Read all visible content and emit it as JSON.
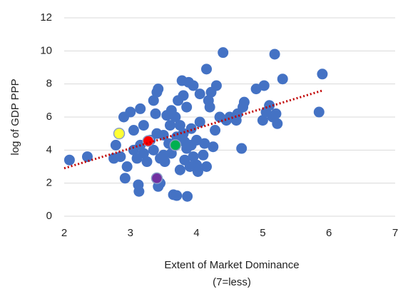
{
  "chart_data": {
    "type": "scatter",
    "xlabel": [
      "Extent of Market Dominance",
      "(7=less)"
    ],
    "ylabel": "log of GDP PPP",
    "xlim": [
      2,
      7
    ],
    "xticks": [
      2,
      3,
      4,
      5,
      6,
      7
    ],
    "ylim": [
      0,
      12
    ],
    "yticks": [
      0,
      2,
      4,
      6,
      8,
      10,
      12
    ],
    "grid": true,
    "series": [
      {
        "color": "#4472c4",
        "x": [
          2.08,
          2.35,
          2.75,
          2.78,
          2.85,
          2.9,
          2.92,
          2.95,
          3.0,
          3.05,
          3.05,
          3.1,
          3.12,
          3.13,
          3.15,
          3.15,
          3.2,
          3.2,
          3.25,
          3.3,
          3.35,
          3.35,
          3.38,
          3.4,
          3.42,
          3.4,
          3.45,
          3.45,
          3.42,
          3.5,
          3.5,
          3.52,
          3.55,
          3.58,
          3.6,
          3.62,
          3.62,
          3.65,
          3.68,
          3.7,
          3.7,
          3.72,
          3.75,
          3.75,
          3.78,
          3.8,
          3.8,
          3.82,
          3.82,
          3.85,
          3.85,
          3.86,
          3.88,
          3.9,
          3.92,
          3.92,
          3.95,
          3.95,
          4.0,
          4.0,
          4.02,
          4.05,
          4.05,
          4.1,
          4.12,
          4.15,
          4.15,
          4.18,
          4.2,
          4.22,
          4.25,
          4.28,
          4.3,
          4.35,
          4.4,
          4.45,
          4.5,
          4.6,
          4.62,
          4.68,
          4.7,
          4.72,
          4.9,
          5.0,
          5.02,
          5.05,
          5.1,
          5.15,
          5.18,
          5.2,
          5.22,
          5.3,
          5.85,
          5.9
        ],
        "values": [
          3.4,
          3.6,
          3.5,
          4.3,
          3.6,
          6.0,
          2.3,
          3.0,
          6.3,
          4.0,
          5.2,
          3.5,
          1.9,
          1.5,
          4.3,
          6.5,
          5.5,
          3.8,
          3.3,
          4.6,
          7.0,
          4.0,
          6.2,
          7.5,
          7.7,
          5.0,
          3.5,
          2.0,
          1.8,
          3.7,
          4.9,
          3.3,
          6.1,
          4.4,
          5.5,
          3.8,
          6.4,
          1.3,
          6.0,
          1.25,
          4.8,
          7.0,
          5.5,
          2.8,
          8.2,
          7.3,
          5.0,
          4.5,
          3.4,
          4.1,
          6.6,
          1.2,
          8.1,
          3.0,
          4.3,
          5.3,
          7.9,
          3.6,
          4.6,
          3.1,
          2.7,
          5.7,
          7.4,
          3.7,
          4.4,
          3.0,
          8.9,
          7.0,
          6.6,
          7.5,
          4.2,
          5.2,
          7.9,
          6.0,
          9.9,
          5.8,
          6.0,
          5.8,
          6.2,
          4.1,
          6.6,
          6.9,
          7.7,
          5.8,
          7.9,
          6.3,
          6.7,
          6.0,
          9.8,
          6.2,
          5.6,
          8.3,
          6.3,
          8.6
        ]
      },
      {
        "color": "#ffff33",
        "x": [
          2.83
        ],
        "values": [
          5.0
        ]
      },
      {
        "color": "#ff0000",
        "x": [
          3.27
        ],
        "values": [
          4.55
        ]
      },
      {
        "color": "#00b050",
        "x": [
          3.68
        ],
        "values": [
          4.3
        ]
      },
      {
        "color": "#7030a0",
        "x": [
          3.4
        ],
        "values": [
          2.3
        ]
      }
    ],
    "trendline": {
      "x": [
        2,
        5.9
      ],
      "values": [
        2.9,
        7.6
      ],
      "color": "#c00000"
    }
  }
}
